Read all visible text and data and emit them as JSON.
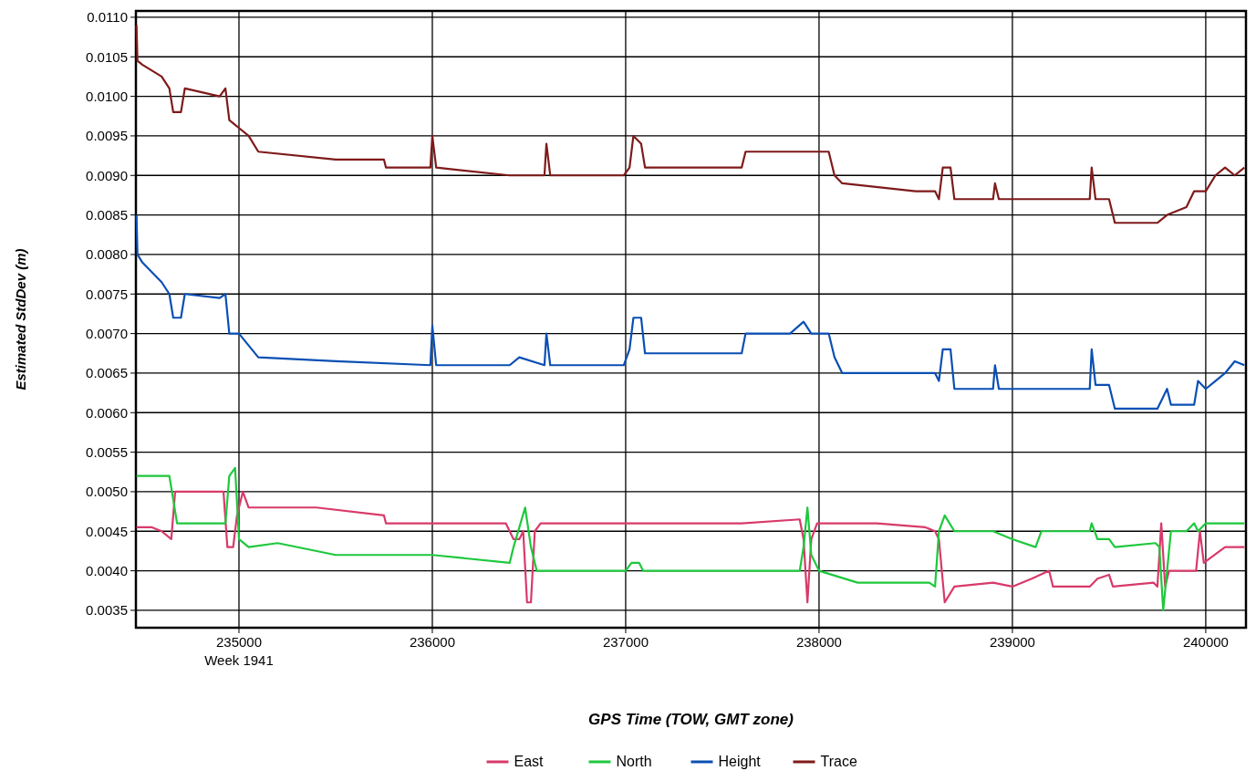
{
  "chart_data": {
    "type": "line",
    "xlabel": "GPS Time (TOW, GMT zone)",
    "ylabel": "Estimated StdDev (m)",
    "annotations": [
      "Week 1941"
    ],
    "xlim": [
      234467,
      240208
    ],
    "ylim": [
      0.00328,
      0.01108
    ],
    "xticks": [
      235000,
      236000,
      237000,
      238000,
      239000,
      240000
    ],
    "yticks": [
      {
        "value": 0.0035,
        "label": "0.0035"
      },
      {
        "value": 0.004,
        "label": "0.0040"
      },
      {
        "value": 0.0045,
        "label": "0.0045"
      },
      {
        "value": 0.005,
        "label": "0.0050"
      },
      {
        "value": 0.0055,
        "label": "0.0055"
      },
      {
        "value": 0.006,
        "label": "0.0060"
      },
      {
        "value": 0.0065,
        "label": "0.0065"
      },
      {
        "value": 0.007,
        "label": "0.0070"
      },
      {
        "value": 0.0075,
        "label": "0.0075"
      },
      {
        "value": 0.008,
        "label": "0.0080"
      },
      {
        "value": 0.0085,
        "label": "0.0085"
      },
      {
        "value": 0.009,
        "label": "0.0090"
      },
      {
        "value": 0.0095,
        "label": "0.0095"
      },
      {
        "value": 0.01,
        "label": "0.0100"
      },
      {
        "value": 0.0105,
        "label": "0.0105"
      },
      {
        "value": 0.011,
        "label": "0.0110"
      }
    ],
    "grid": true,
    "legend": "bottom",
    "marker": "none",
    "line_style": "solid",
    "series": [
      {
        "name": "East",
        "color": "#d83a6a",
        "x": [
          234470,
          234550,
          234600,
          234650,
          234670,
          234700,
          234920,
          234940,
          234970,
          234990,
          235020,
          235050,
          235400,
          235750,
          235760,
          236380,
          236420,
          236450,
          236470,
          236490,
          236510,
          236530,
          236560,
          237000,
          237600,
          237900,
          237920,
          237940,
          237960,
          237990,
          238300,
          238550,
          238600,
          238620,
          238650,
          238700,
          238900,
          239000,
          239100,
          239190,
          239210,
          239400,
          239440,
          239500,
          239520,
          239730,
          239750,
          239770,
          239790,
          239810,
          239900,
          239950,
          239970,
          239990,
          240100,
          240200
        ],
        "values": [
          0.00455,
          0.00455,
          0.0045,
          0.0044,
          0.005,
          0.005,
          0.005,
          0.0043,
          0.0043,
          0.0047,
          0.005,
          0.0048,
          0.0048,
          0.0047,
          0.0046,
          0.0046,
          0.0044,
          0.0044,
          0.0045,
          0.0036,
          0.0036,
          0.0045,
          0.0046,
          0.0046,
          0.0046,
          0.00465,
          0.0044,
          0.0036,
          0.0044,
          0.0046,
          0.0046,
          0.00455,
          0.0045,
          0.0044,
          0.0036,
          0.0038,
          0.00385,
          0.0038,
          0.0039,
          0.004,
          0.0038,
          0.0038,
          0.0039,
          0.00395,
          0.0038,
          0.00385,
          0.0038,
          0.0046,
          0.0038,
          0.004,
          0.004,
          0.004,
          0.0045,
          0.0041,
          0.0043,
          0.0043
        ]
      },
      {
        "name": "North",
        "color": "#1ec83c",
        "x": [
          234470,
          234600,
          234640,
          234660,
          234680,
          234900,
          234930,
          234950,
          234980,
          235000,
          235050,
          235200,
          235500,
          236000,
          236400,
          236420,
          236480,
          236510,
          236540,
          237000,
          237030,
          237070,
          237090,
          237900,
          237920,
          237940,
          237960,
          238000,
          238200,
          238570,
          238600,
          238620,
          238650,
          238700,
          238900,
          239000,
          239120,
          239150,
          239400,
          239410,
          239440,
          239500,
          239530,
          239740,
          239760,
          239780,
          239800,
          239820,
          239900,
          239940,
          239960,
          240000,
          240200
        ],
        "values": [
          0.0052,
          0.0052,
          0.0052,
          0.0049,
          0.0046,
          0.0046,
          0.0046,
          0.0052,
          0.0053,
          0.0044,
          0.0043,
          0.00435,
          0.0042,
          0.0042,
          0.0041,
          0.0043,
          0.0048,
          0.0043,
          0.004,
          0.004,
          0.0041,
          0.0041,
          0.004,
          0.004,
          0.0043,
          0.0048,
          0.0042,
          0.004,
          0.00385,
          0.00385,
          0.0038,
          0.0045,
          0.0047,
          0.0045,
          0.0045,
          0.0044,
          0.0043,
          0.0045,
          0.0045,
          0.0046,
          0.0044,
          0.0044,
          0.0043,
          0.00435,
          0.0043,
          0.0035,
          0.004,
          0.0045,
          0.0045,
          0.0046,
          0.0045,
          0.0046,
          0.0046
        ]
      },
      {
        "name": "Height",
        "color": "#0a4fb4",
        "x": [
          234470,
          234475,
          234500,
          234600,
          234640,
          234660,
          234700,
          234720,
          234900,
          234930,
          234950,
          235000,
          235100,
          235500,
          235990,
          236000,
          236020,
          236400,
          236450,
          236580,
          236590,
          236610,
          236990,
          237020,
          237040,
          237080,
          237100,
          237600,
          237620,
          237850,
          237920,
          237960,
          238050,
          238080,
          238120,
          238500,
          238600,
          238620,
          238640,
          238680,
          238700,
          238900,
          238910,
          238930,
          239400,
          239410,
          239430,
          239500,
          239530,
          239750,
          239780,
          239800,
          239820,
          239940,
          239960,
          240000,
          240050,
          240100,
          240150,
          240200
        ],
        "values": [
          0.0085,
          0.008,
          0.0079,
          0.00765,
          0.0075,
          0.0072,
          0.0072,
          0.0075,
          0.00745,
          0.0075,
          0.007,
          0.007,
          0.0067,
          0.00665,
          0.0066,
          0.0071,
          0.0066,
          0.0066,
          0.0067,
          0.0066,
          0.007,
          0.0066,
          0.0066,
          0.0068,
          0.0072,
          0.0072,
          0.00675,
          0.00675,
          0.007,
          0.007,
          0.00715,
          0.007,
          0.007,
          0.0067,
          0.0065,
          0.0065,
          0.0065,
          0.0064,
          0.0068,
          0.0068,
          0.0063,
          0.0063,
          0.0066,
          0.0063,
          0.0063,
          0.0068,
          0.00635,
          0.00635,
          0.00605,
          0.00605,
          0.0062,
          0.0063,
          0.0061,
          0.0061,
          0.0064,
          0.0063,
          0.0064,
          0.0065,
          0.00665,
          0.0066
        ]
      },
      {
        "name": "Trace",
        "color": "#7f1a1a",
        "x": [
          234470,
          234475,
          234500,
          234600,
          234640,
          234660,
          234700,
          234720,
          234900,
          234930,
          234950,
          235000,
          235050,
          235100,
          235500,
          235750,
          235760,
          235990,
          236000,
          236020,
          236400,
          236450,
          236580,
          236590,
          236610,
          236990,
          237020,
          237040,
          237080,
          237100,
          237600,
          237620,
          237900,
          238050,
          238080,
          238120,
          238500,
          238600,
          238620,
          238640,
          238680,
          238700,
          238900,
          238910,
          238930,
          239400,
          239410,
          239430,
          239500,
          239530,
          239750,
          239800,
          239900,
          239940,
          240000,
          240050,
          240100,
          240150,
          240200
        ],
        "values": [
          0.0109,
          0.01045,
          0.0104,
          0.01025,
          0.0101,
          0.0098,
          0.0098,
          0.0101,
          0.01,
          0.0101,
          0.0097,
          0.0096,
          0.0095,
          0.0093,
          0.0092,
          0.0092,
          0.0091,
          0.0091,
          0.0095,
          0.0091,
          0.009,
          0.009,
          0.009,
          0.0094,
          0.009,
          0.009,
          0.0091,
          0.0095,
          0.0094,
          0.0091,
          0.0091,
          0.0093,
          0.0093,
          0.0093,
          0.009,
          0.0089,
          0.0088,
          0.0088,
          0.0087,
          0.0091,
          0.0091,
          0.0087,
          0.0087,
          0.0089,
          0.0087,
          0.0087,
          0.0091,
          0.0087,
          0.0087,
          0.0084,
          0.0084,
          0.0085,
          0.0086,
          0.0088,
          0.0088,
          0.009,
          0.0091,
          0.009,
          0.0091
        ]
      }
    ]
  }
}
